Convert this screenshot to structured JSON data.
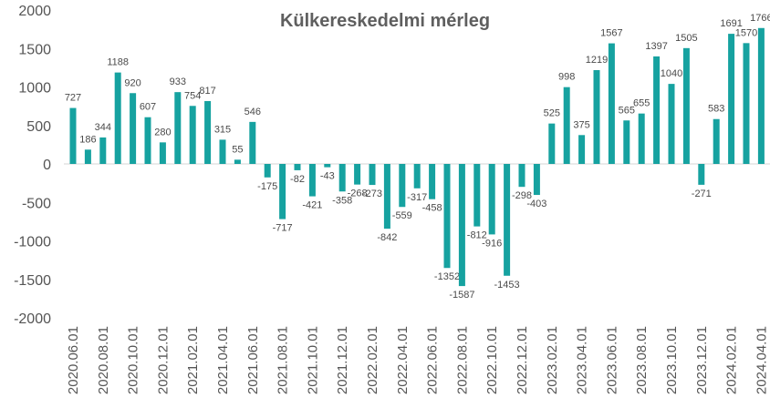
{
  "chart_data": {
    "type": "bar",
    "title": "Külkereskedelmi mérleg",
    "xlabel": "",
    "ylabel": "",
    "ylim": [
      -2000,
      2000
    ],
    "yticks": [
      2000,
      1500,
      1000,
      500,
      0,
      -500,
      -1000,
      -1500,
      -2000
    ],
    "grid": false,
    "legend": "none",
    "bar_color": "#16a2a0",
    "x_tick_labels": [
      "2020.06.01",
      "2020.08.01",
      "2020.10.01",
      "2020.12.01",
      "2021.02.01",
      "2021.04.01",
      "2021.06.01",
      "2021.08.01",
      "2021.10.01",
      "2021.12.01",
      "2022.02.01",
      "2022.04.01",
      "2022.06.01",
      "2022.08.01",
      "2022.10.01",
      "2022.12.01",
      "2023.02.01",
      "2023.04.01",
      "2023.06.01",
      "2023.08.01",
      "2023.10.01",
      "2023.12.01",
      "2024.02.01",
      "2024.04.01"
    ],
    "categories": [
      "2020.06.01",
      "2020.07.01",
      "2020.08.01",
      "2020.09.01",
      "2020.10.01",
      "2020.11.01",
      "2020.12.01",
      "2021.01.01",
      "2021.02.01",
      "2021.03.01",
      "2021.04.01",
      "2021.05.01",
      "2021.06.01",
      "2021.07.01",
      "2021.08.01",
      "2021.09.01",
      "2021.10.01",
      "2021.11.01",
      "2021.12.01",
      "2022.01.01",
      "2022.02.01",
      "2022.03.01",
      "2022.04.01",
      "2022.05.01",
      "2022.06.01",
      "2022.07.01",
      "2022.08.01",
      "2022.09.01",
      "2022.10.01",
      "2022.11.01",
      "2022.12.01",
      "2023.01.01",
      "2023.02.01",
      "2023.03.01",
      "2023.04.01",
      "2023.05.01",
      "2023.06.01",
      "2023.07.01",
      "2023.08.01",
      "2023.09.01",
      "2023.10.01",
      "2023.11.01",
      "2023.12.01",
      "2024.01.01",
      "2024.02.01",
      "2024.03.01",
      "2024.04.01"
    ],
    "values": [
      727,
      186,
      344,
      1188,
      920,
      607,
      280,
      933,
      754,
      817,
      315,
      55,
      546,
      -175,
      -717,
      -82,
      -421,
      -43,
      -358,
      -268,
      -273,
      -842,
      -559,
      -317,
      -458,
      -1352,
      -1587,
      -812,
      -916,
      -1453,
      -298,
      -403,
      525,
      998,
      375,
      1219,
      1567,
      565,
      655,
      1397,
      1040,
      1505,
      -271,
      583,
      1691,
      1570,
      1766
    ],
    "labels": [
      "727",
      "186",
      "344",
      "1188",
      "920",
      "607",
      "280",
      "933",
      "754",
      "817",
      "315",
      "55",
      "546",
      "-175",
      "-717",
      "-82",
      "-421",
      "-43",
      "-358",
      "-268",
      "-273",
      "-842",
      "-559",
      "-317",
      "-458",
      "-1352",
      "-1587",
      "-812",
      "-916",
      "-1453",
      "-298",
      "-403",
      "525",
      "998",
      "375",
      "1219",
      "1567",
      "565",
      "655",
      "1397",
      "1040",
      "1505",
      "-271",
      "583",
      "1691",
      "1570",
      "1766"
    ]
  }
}
